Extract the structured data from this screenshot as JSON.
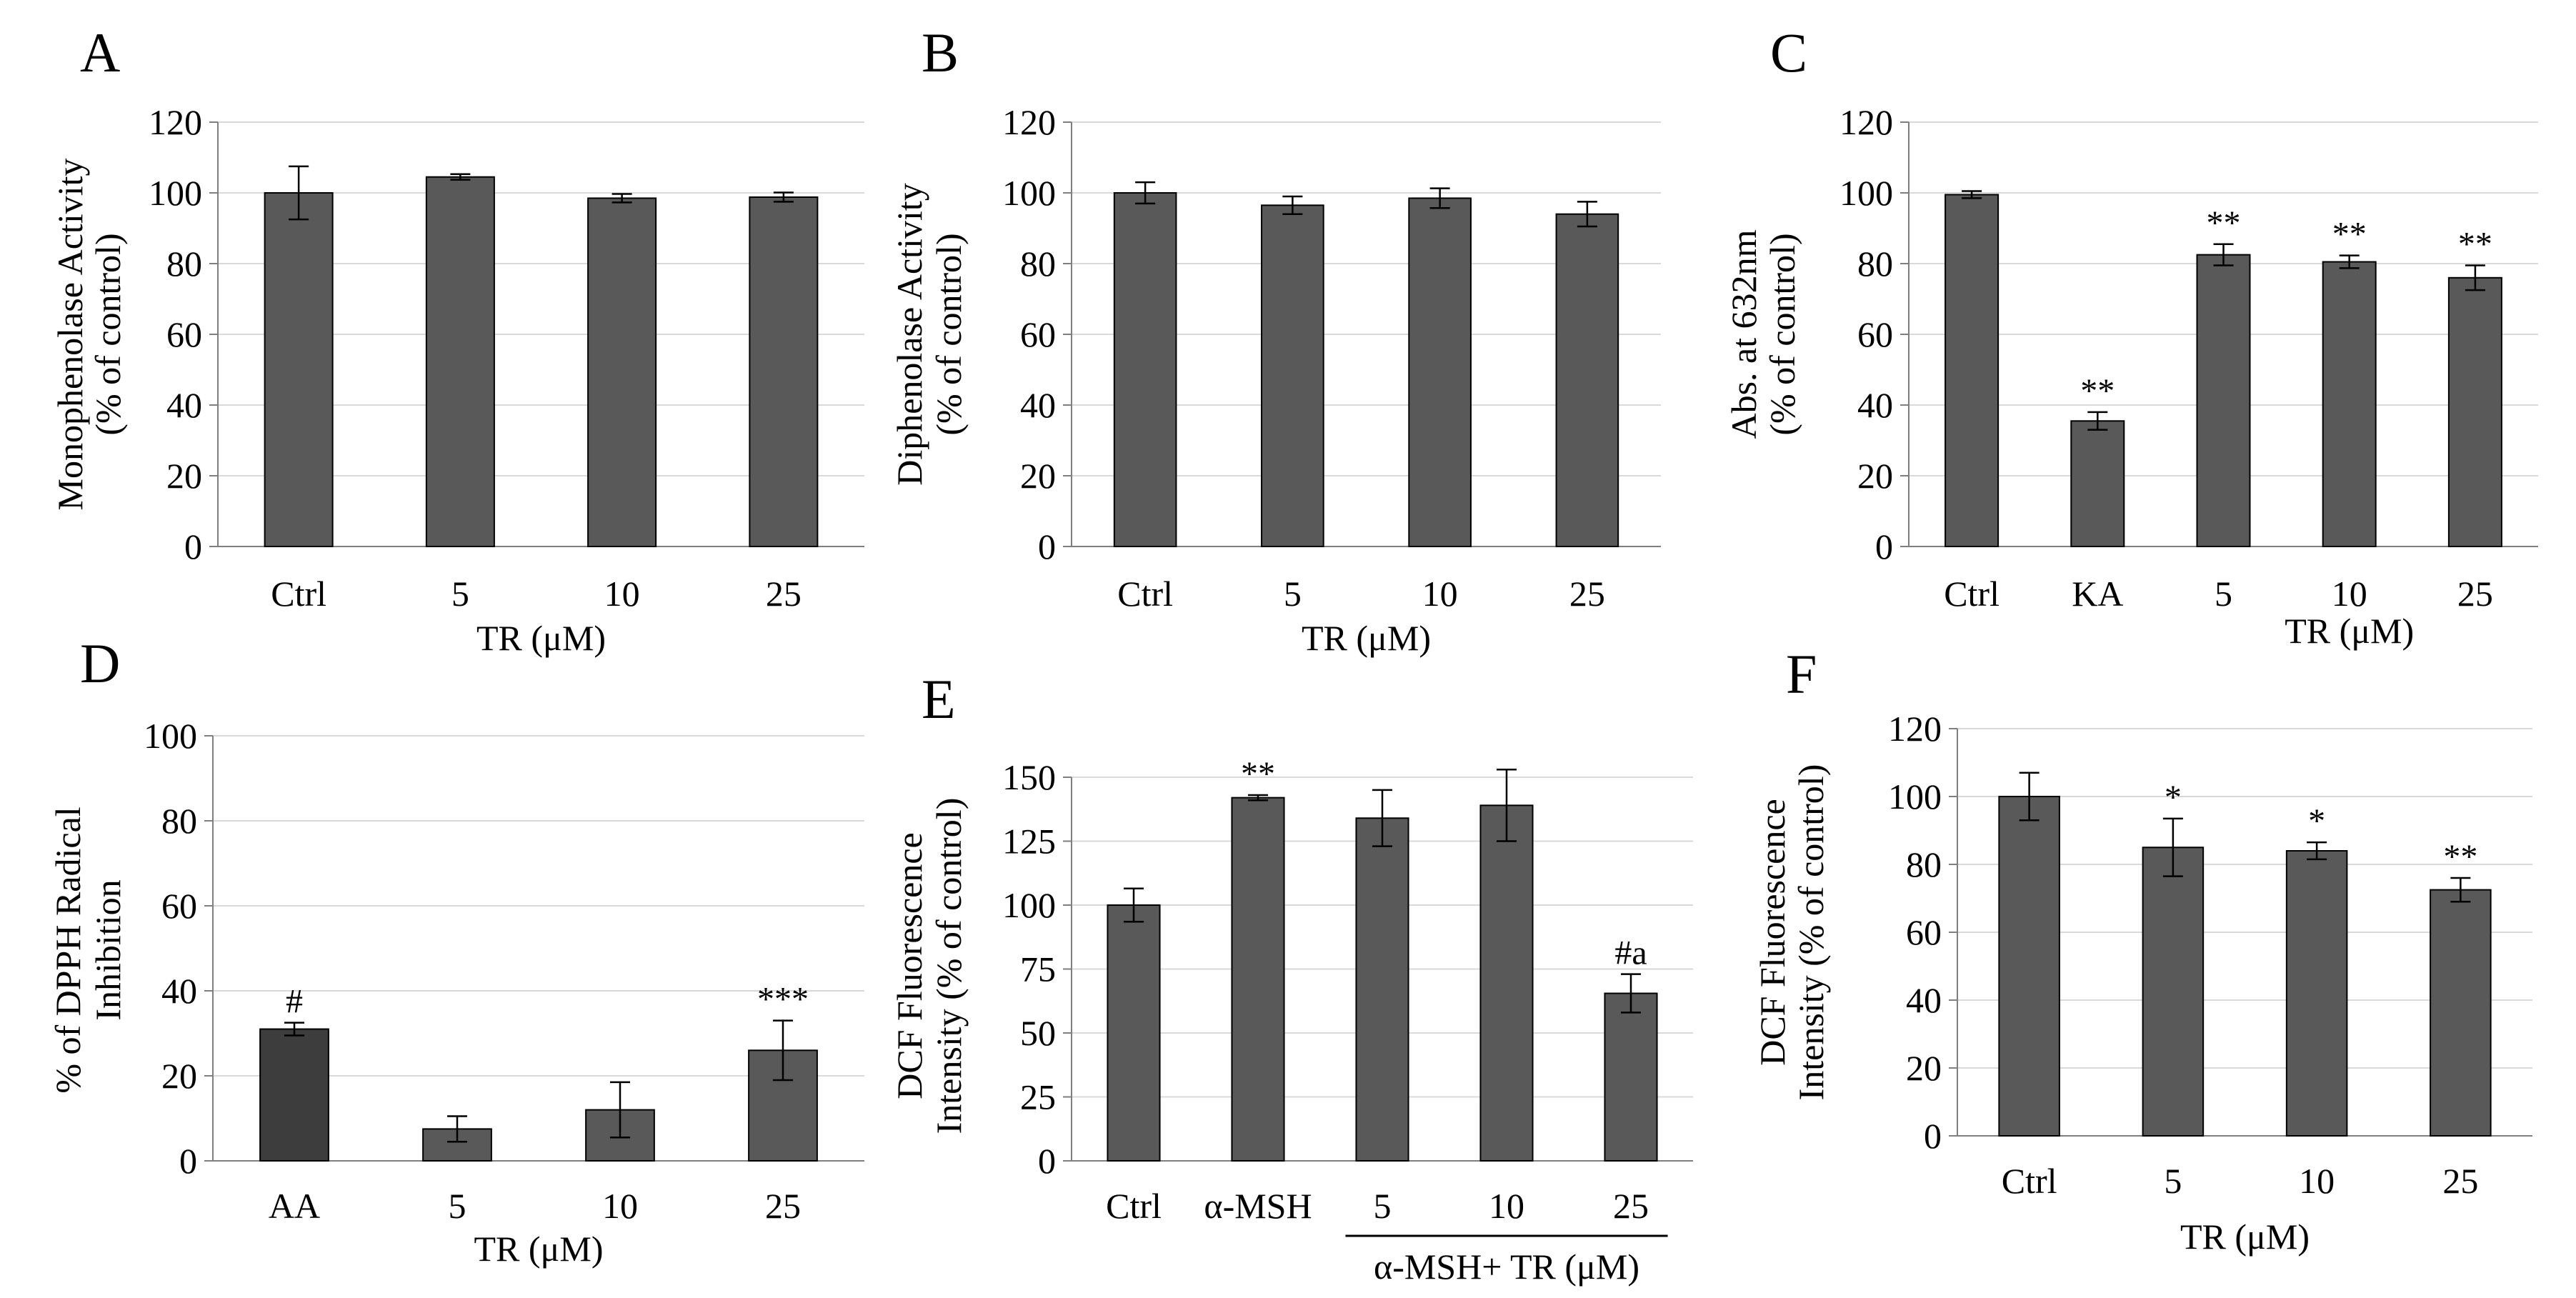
{
  "chart_data": [
    {
      "panel": "A",
      "type": "bar",
      "ylabel": [
        "Monophenolase Activity",
        "(% of control)"
      ],
      "xlabel": "TR (μM)",
      "categories": [
        "Ctrl",
        "5",
        "10",
        "25"
      ],
      "values": [
        100,
        104.5,
        98.5,
        98.8
      ],
      "errors": [
        7.5,
        0.8,
        1.2,
        1.3
      ],
      "annotations": [
        "",
        "",
        "",
        ""
      ],
      "bar_colors": [
        "#595959",
        "#595959",
        "#595959",
        "#595959"
      ],
      "ylim": [
        0,
        120
      ],
      "yticks": [
        0,
        20,
        40,
        60,
        80,
        100,
        120
      ],
      "grid": true
    },
    {
      "panel": "B",
      "type": "bar",
      "ylabel": [
        "Diphenolase  Activity",
        "(% of control)"
      ],
      "xlabel": "TR (μM)",
      "categories": [
        "Ctrl",
        "5",
        "10",
        "25"
      ],
      "values": [
        100,
        96.5,
        98.5,
        94
      ],
      "errors": [
        3,
        2.5,
        2.8,
        3.5
      ],
      "annotations": [
        "",
        "",
        "",
        ""
      ],
      "bar_colors": [
        "#595959",
        "#595959",
        "#595959",
        "#595959"
      ],
      "ylim": [
        0,
        120
      ],
      "yticks": [
        0,
        20,
        40,
        60,
        80,
        100,
        120
      ],
      "grid": true
    },
    {
      "panel": "C",
      "type": "bar",
      "ylabel": [
        "Abs. at 632nm",
        "(% of control)"
      ],
      "xlabel": "TR (μM)",
      "categories": [
        "Ctrl",
        "KA",
        "5",
        "10",
        "25"
      ],
      "values": [
        99.5,
        35.5,
        82.5,
        80.5,
        76
      ],
      "errors": [
        1,
        2.5,
        3,
        1.8,
        3.5
      ],
      "annotations": [
        "",
        "**",
        "**",
        "**",
        "**"
      ],
      "bar_colors": [
        "#595959",
        "#595959",
        "#595959",
        "#595959",
        "#595959"
      ],
      "ylim": [
        0,
        120
      ],
      "yticks": [
        0,
        20,
        40,
        60,
        80,
        100,
        120
      ],
      "grid": true
    },
    {
      "panel": "D",
      "type": "bar",
      "ylabel": [
        "% of  DPPH  Radical",
        "Inhibition"
      ],
      "xlabel": "TR (μM)",
      "categories": [
        "AA",
        "5",
        "10",
        "25"
      ],
      "values": [
        31,
        7.5,
        12,
        26
      ],
      "errors": [
        1.5,
        3,
        6.5,
        7
      ],
      "annotations": [
        "#",
        "",
        "",
        "***"
      ],
      "bar_colors": [
        "#3d3d3d",
        "#595959",
        "#595959",
        "#595959"
      ],
      "ylim": [
        0,
        100
      ],
      "yticks": [
        0,
        20,
        40,
        60,
        80,
        100
      ],
      "grid": true
    },
    {
      "panel": "E",
      "type": "bar",
      "ylabel": [
        "DCF Fluorescence",
        "Intensity (% of  control)"
      ],
      "xlabel": "α-MSH+ TR (μM)",
      "categories": [
        "Ctrl",
        "α-MSH",
        "5",
        "10",
        "25"
      ],
      "values": [
        100,
        142,
        134,
        139,
        65.5
      ],
      "errors": [
        6.5,
        1,
        11,
        14,
        7.5
      ],
      "annotations": [
        "",
        "**",
        "",
        "",
        "#a"
      ],
      "bar_colors": [
        "#595959",
        "#595959",
        "#595959",
        "#595959",
        "#595959"
      ],
      "ylim": [
        0,
        150
      ],
      "yticks": [
        0,
        25,
        50,
        75,
        100,
        125,
        150
      ],
      "grid": true
    },
    {
      "panel": "F",
      "type": "bar",
      "ylabel": [
        "DCF Fluorescence",
        "Intensity  (% of control)"
      ],
      "xlabel": "TR (μM)",
      "categories": [
        "Ctrl",
        "5",
        "10",
        "25"
      ],
      "values": [
        100,
        85,
        84,
        72.5
      ],
      "errors": [
        7,
        8.5,
        2.5,
        3.5
      ],
      "annotations": [
        "",
        "*",
        "*",
        "**"
      ],
      "bar_colors": [
        "#595959",
        "#595959",
        "#595959",
        "#595959"
      ],
      "ylim": [
        0,
        120
      ],
      "yticks": [
        0,
        20,
        40,
        60,
        80,
        100,
        120
      ],
      "grid": true
    }
  ]
}
